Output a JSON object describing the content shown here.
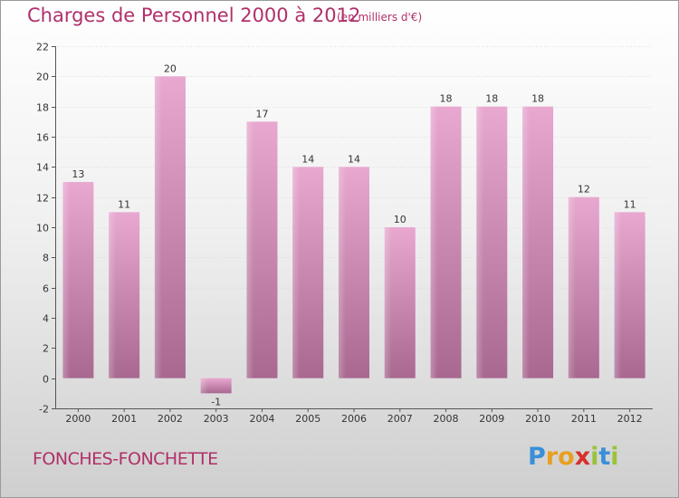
{
  "title": "Charges de Personnel 2000 à 2012",
  "subtitle": "(en milliers d'€)",
  "town": "FONCHES-FONCHETTE",
  "logo": {
    "letters": [
      "P",
      "r",
      "o",
      "x",
      "i",
      "t",
      "i"
    ],
    "colors": [
      "#3a8fd8",
      "#e8a020",
      "#e8a020",
      "#d8302a",
      "#9ac23a",
      "#3a8fd8",
      "#9ac23a"
    ]
  },
  "colors": {
    "accent": "#b0306a",
    "bar_light": "#e8a8d0",
    "bar_dark": "#a86890",
    "grid": "#dddddd"
  },
  "chart_data": {
    "type": "bar",
    "categories": [
      "2000",
      "2001",
      "2002",
      "2003",
      "2004",
      "2005",
      "2006",
      "2007",
      "2008",
      "2009",
      "2010",
      "2011",
      "2012"
    ],
    "values": [
      13,
      11,
      20,
      -1,
      17,
      14,
      14,
      10,
      18,
      18,
      18,
      12,
      11
    ],
    "ylim": [
      -2,
      22
    ],
    "yticks": [
      -2,
      0,
      2,
      4,
      6,
      8,
      10,
      12,
      14,
      16,
      18,
      20,
      22
    ],
    "grid": false
  }
}
